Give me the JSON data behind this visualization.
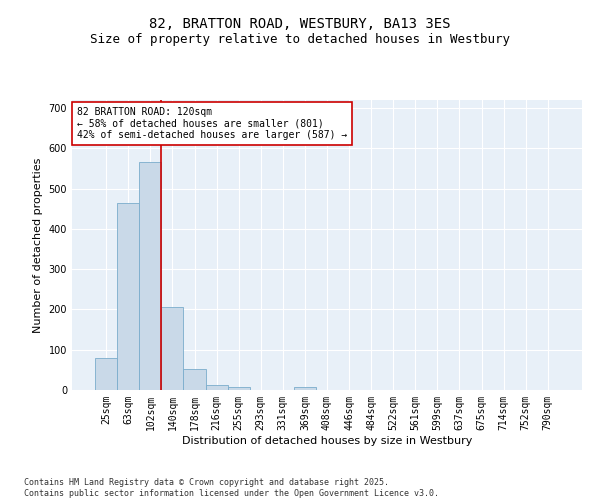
{
  "title1": "82, BRATTON ROAD, WESTBURY, BA13 3ES",
  "title2": "Size of property relative to detached houses in Westbury",
  "xlabel": "Distribution of detached houses by size in Westbury",
  "ylabel": "Number of detached properties",
  "categories": [
    "25sqm",
    "63sqm",
    "102sqm",
    "140sqm",
    "178sqm",
    "216sqm",
    "255sqm",
    "293sqm",
    "331sqm",
    "369sqm",
    "408sqm",
    "446sqm",
    "484sqm",
    "522sqm",
    "561sqm",
    "599sqm",
    "637sqm",
    "675sqm",
    "714sqm",
    "752sqm",
    "790sqm"
  ],
  "values": [
    80,
    465,
    565,
    207,
    52,
    13,
    7,
    0,
    0,
    7,
    0,
    0,
    0,
    0,
    0,
    0,
    0,
    0,
    0,
    0,
    0
  ],
  "bar_color": "#c9d9e8",
  "bar_edge_color": "#7aaccc",
  "bar_width": 1.0,
  "property_line_x": 2.47,
  "property_line_color": "#cc0000",
  "ylim": [
    0,
    720
  ],
  "yticks": [
    0,
    100,
    200,
    300,
    400,
    500,
    600,
    700
  ],
  "annotation_text": "82 BRATTON ROAD: 120sqm\n← 58% of detached houses are smaller (801)\n42% of semi-detached houses are larger (587) →",
  "annotation_box_color": "#cc0000",
  "bg_color": "#e8f0f8",
  "grid_color": "#ffffff",
  "footer_text": "Contains HM Land Registry data © Crown copyright and database right 2025.\nContains public sector information licensed under the Open Government Licence v3.0.",
  "title1_fontsize": 10,
  "title2_fontsize": 9,
  "xlabel_fontsize": 8,
  "ylabel_fontsize": 8,
  "tick_fontsize": 7,
  "annotation_fontsize": 7,
  "footer_fontsize": 6
}
